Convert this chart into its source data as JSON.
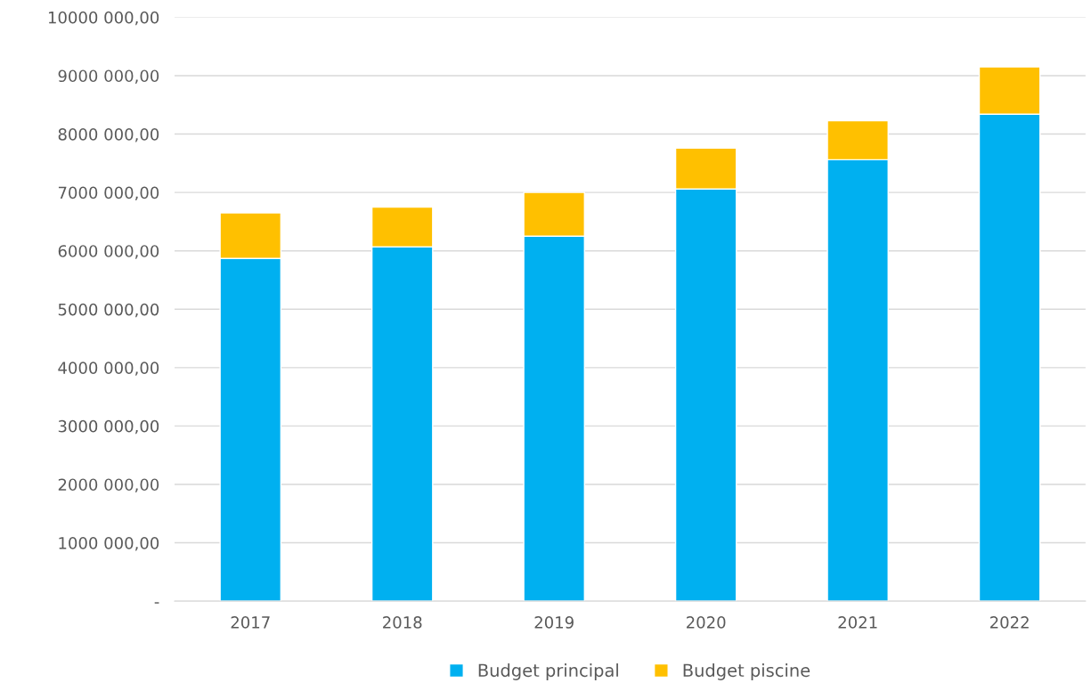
{
  "chart_data": {
    "type": "bar",
    "stacked": true,
    "categories": [
      "2017",
      "2018",
      "2019",
      "2020",
      "2021",
      "2022"
    ],
    "series": [
      {
        "name": "Budget principal",
        "color": "#00b0f0",
        "values": [
          5870000,
          6070000,
          6250000,
          7060000,
          7560000,
          8340000
        ]
      },
      {
        "name": "Budget piscine",
        "color": "#ffc000",
        "values": [
          780000,
          680000,
          750000,
          700000,
          670000,
          810000
        ]
      }
    ],
    "ylim": [
      0,
      10000000
    ],
    "yticks": [
      {
        "value": 0,
        "label": "-"
      },
      {
        "value": 1000000,
        "label": "1000 000,00"
      },
      {
        "value": 2000000,
        "label": "2000 000,00"
      },
      {
        "value": 3000000,
        "label": "3000 000,00"
      },
      {
        "value": 4000000,
        "label": "4000 000,00"
      },
      {
        "value": 5000000,
        "label": "5000 000,00"
      },
      {
        "value": 6000000,
        "label": "6000 000,00"
      },
      {
        "value": 7000000,
        "label": "7000 000,00"
      },
      {
        "value": 8000000,
        "label": "8000 000,00"
      },
      {
        "value": 9000000,
        "label": "9000 000,00"
      },
      {
        "value": 10000000,
        "label": "10000 000,00"
      }
    ],
    "grid": "y",
    "legend": "bottom"
  }
}
